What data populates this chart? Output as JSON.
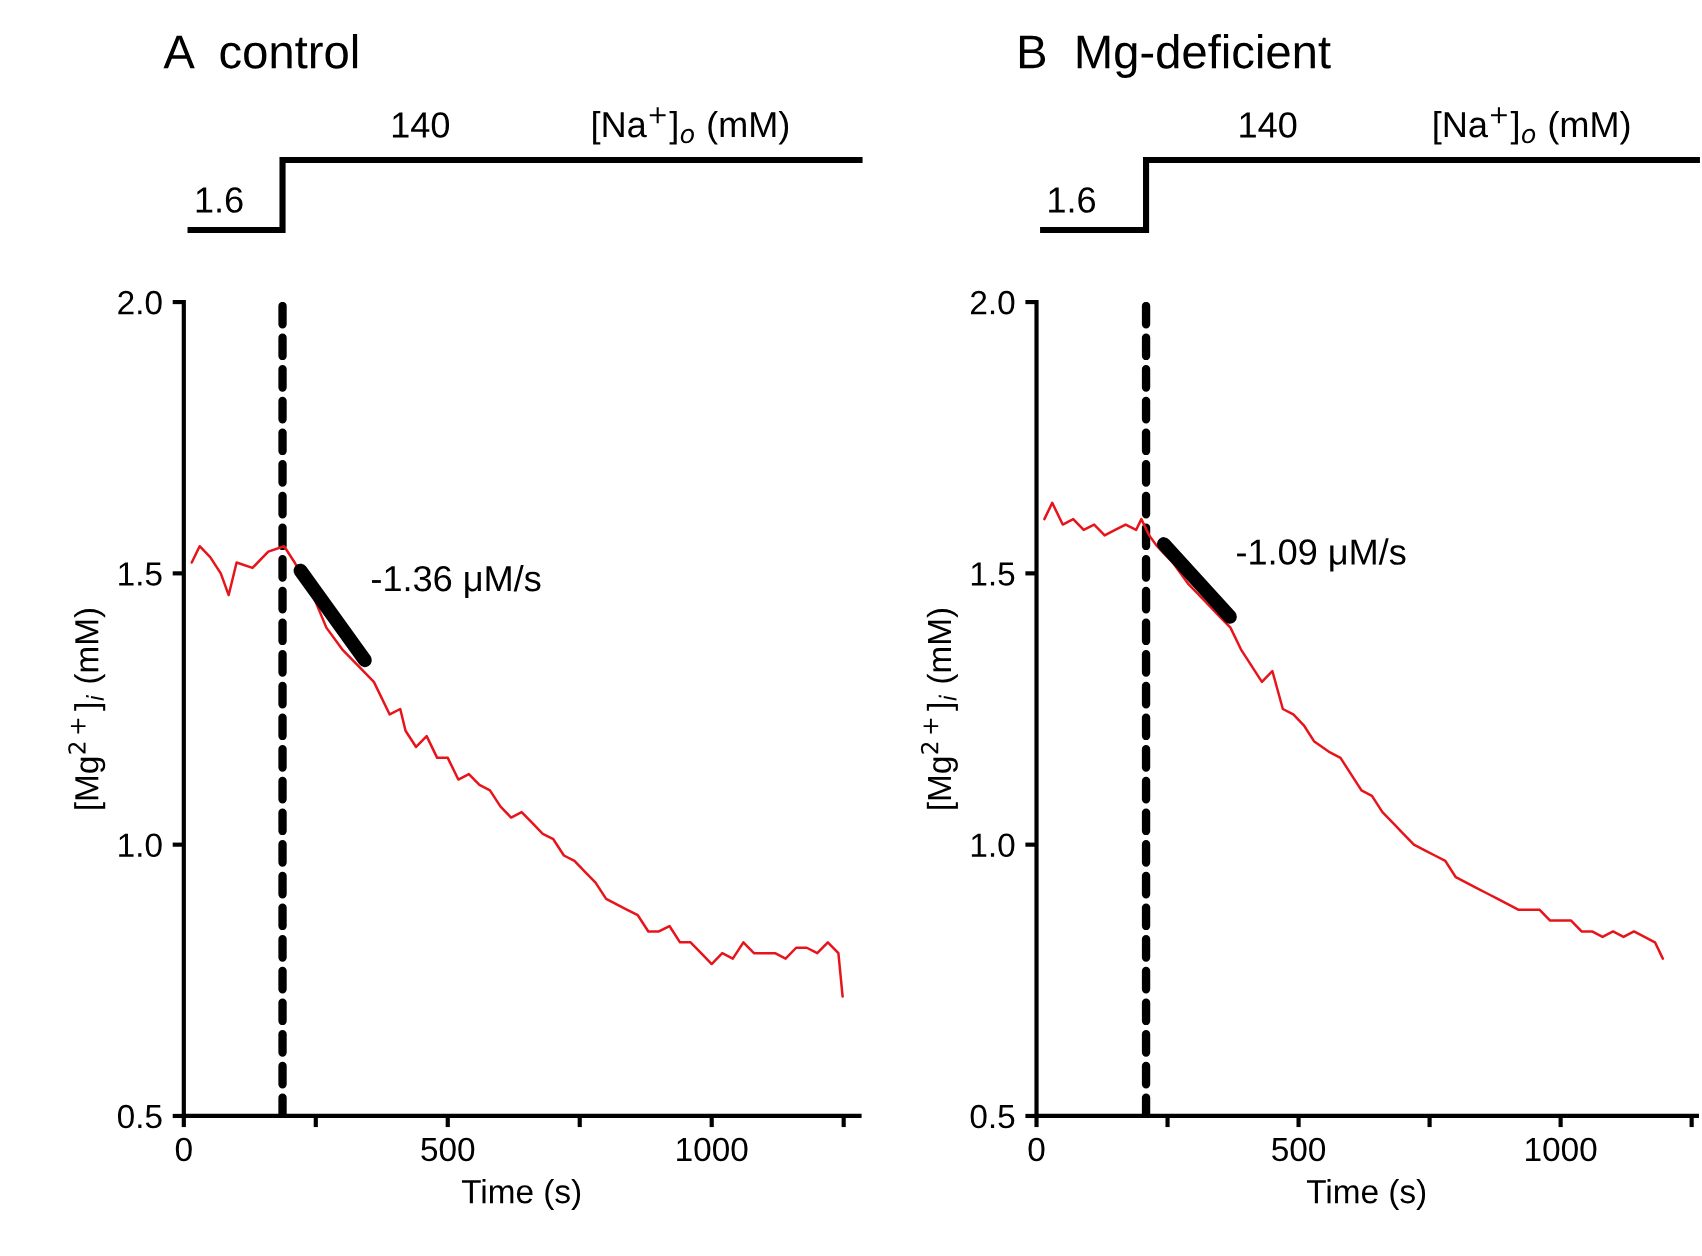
{
  "chart_data": [
    {
      "type": "line",
      "title": "A  control",
      "xlabel": "Time (s)",
      "ylabel": "[Mg$^{2+}$]$_{i}$ (mM)",
      "annotations": [
        "1.6",
        "140",
        "[Na$^{+}$]$_{o}$ (mM)",
        "-1.36 μM/s"
      ],
      "xlim": [
        0,
        1280
      ],
      "xticks": [
        0,
        {
          "value": 250,
          "label": null
        },
        500,
        {
          "value": 750,
          "label": null
        },
        1000,
        {
          "value": 1250,
          "label": null
        }
      ],
      "ylim": [
        0.5,
        2.0
      ],
      "yticks": [
        {
          "value": 0.5,
          "label": "0.5"
        },
        {
          "value": 1,
          "label": "1.0"
        },
        {
          "value": 1.5,
          "label": "1.5"
        },
        {
          "value": 2,
          "label": "2.0"
        }
      ],
      "ref_lines": [
        {
          "axis": "x",
          "value": 187,
          "color": "#000000",
          "line_style": "dashed"
        }
      ],
      "series": [
        {
          "color": "#e8141c",
          "x": [
            15,
            30,
            50,
            70,
            85,
            100,
            130,
            160,
            190,
            210,
            240,
            270,
            300,
            330,
            360,
            390,
            410,
            420,
            440,
            460,
            480,
            500,
            520,
            540,
            560,
            580,
            600,
            620,
            640,
            660,
            680,
            700,
            720,
            740,
            760,
            780,
            800,
            820,
            840,
            860,
            880,
            900,
            920,
            940,
            960,
            980,
            1000,
            1020,
            1040,
            1060,
            1080,
            1100,
            1120,
            1140,
            1160,
            1180,
            1200,
            1220,
            1240,
            1248
          ],
          "values": [
            1.52,
            1.55,
            1.53,
            1.5,
            1.46,
            1.52,
            1.51,
            1.54,
            1.55,
            1.52,
            1.47,
            1.4,
            1.36,
            1.33,
            1.3,
            1.24,
            1.25,
            1.21,
            1.18,
            1.2,
            1.16,
            1.16,
            1.12,
            1.13,
            1.11,
            1.1,
            1.07,
            1.05,
            1.06,
            1.04,
            1.02,
            1.01,
            0.98,
            0.97,
            0.95,
            0.93,
            0.9,
            0.89,
            0.88,
            0.87,
            0.84,
            0.84,
            0.85,
            0.82,
            0.82,
            0.8,
            0.78,
            0.8,
            0.79,
            0.82,
            0.8,
            0.8,
            0.8,
            0.79,
            0.81,
            0.81,
            0.8,
            0.82,
            0.8,
            0.72
          ]
        },
        {
          "color": "#000000",
          "x": [
            221,
            343
          ],
          "values": [
            1.505,
            1.34
          ]
        }
      ]
    },
    {
      "type": "line",
      "title": "B  Mg-deficient",
      "xlabel": "Time (s)",
      "ylabel": "[Mg$^{2+}$]$_{i}$ (mM)",
      "annotations": [
        "1.6",
        "140",
        "[Na$^{+}$]$_{o}$ (mM)",
        "-1.09 μM/s"
      ],
      "xlim": [
        0,
        1260
      ],
      "xticks": [
        0,
        {
          "value": 250,
          "label": null
        },
        500,
        {
          "value": 750,
          "label": null
        },
        1000,
        {
          "value": 1250,
          "label": null
        }
      ],
      "ylim": [
        0.5,
        2.0
      ],
      "yticks": [
        {
          "value": 0.5,
          "label": "0.5"
        },
        {
          "value": 1,
          "label": "1.0"
        },
        {
          "value": 1.5,
          "label": "1.5"
        },
        {
          "value": 2,
          "label": "2.0"
        }
      ],
      "ref_lines": [
        {
          "axis": "x",
          "value": 209,
          "color": "#000000",
          "line_style": "dashed"
        }
      ],
      "series": [
        {
          "color": "#e8141c",
          "x": [
            15,
            30,
            50,
            70,
            90,
            110,
            130,
            150,
            170,
            190,
            200,
            215,
            230,
            260,
            290,
            320,
            350,
            370,
            390,
            410,
            430,
            450,
            470,
            490,
            510,
            530,
            560,
            580,
            600,
            620,
            640,
            660,
            680,
            700,
            720,
            740,
            760,
            780,
            800,
            820,
            840,
            860,
            880,
            900,
            920,
            940,
            960,
            980,
            1000,
            1020,
            1040,
            1060,
            1080,
            1100,
            1120,
            1140,
            1160,
            1180,
            1195
          ],
          "values": [
            1.6,
            1.63,
            1.59,
            1.6,
            1.58,
            1.59,
            1.57,
            1.58,
            1.59,
            1.58,
            1.6,
            1.57,
            1.55,
            1.52,
            1.48,
            1.45,
            1.42,
            1.4,
            1.36,
            1.33,
            1.3,
            1.32,
            1.25,
            1.24,
            1.22,
            1.19,
            1.17,
            1.16,
            1.13,
            1.1,
            1.09,
            1.06,
            1.04,
            1.02,
            1.0,
            0.99,
            0.98,
            0.97,
            0.94,
            0.93,
            0.92,
            0.91,
            0.9,
            0.89,
            0.88,
            0.88,
            0.88,
            0.86,
            0.86,
            0.86,
            0.84,
            0.84,
            0.83,
            0.84,
            0.83,
            0.84,
            0.83,
            0.82,
            0.79
          ]
        },
        {
          "color": "#000000",
          "x": [
            243,
            369
          ],
          "values": [
            1.554,
            1.42
          ]
        }
      ]
    }
  ]
}
